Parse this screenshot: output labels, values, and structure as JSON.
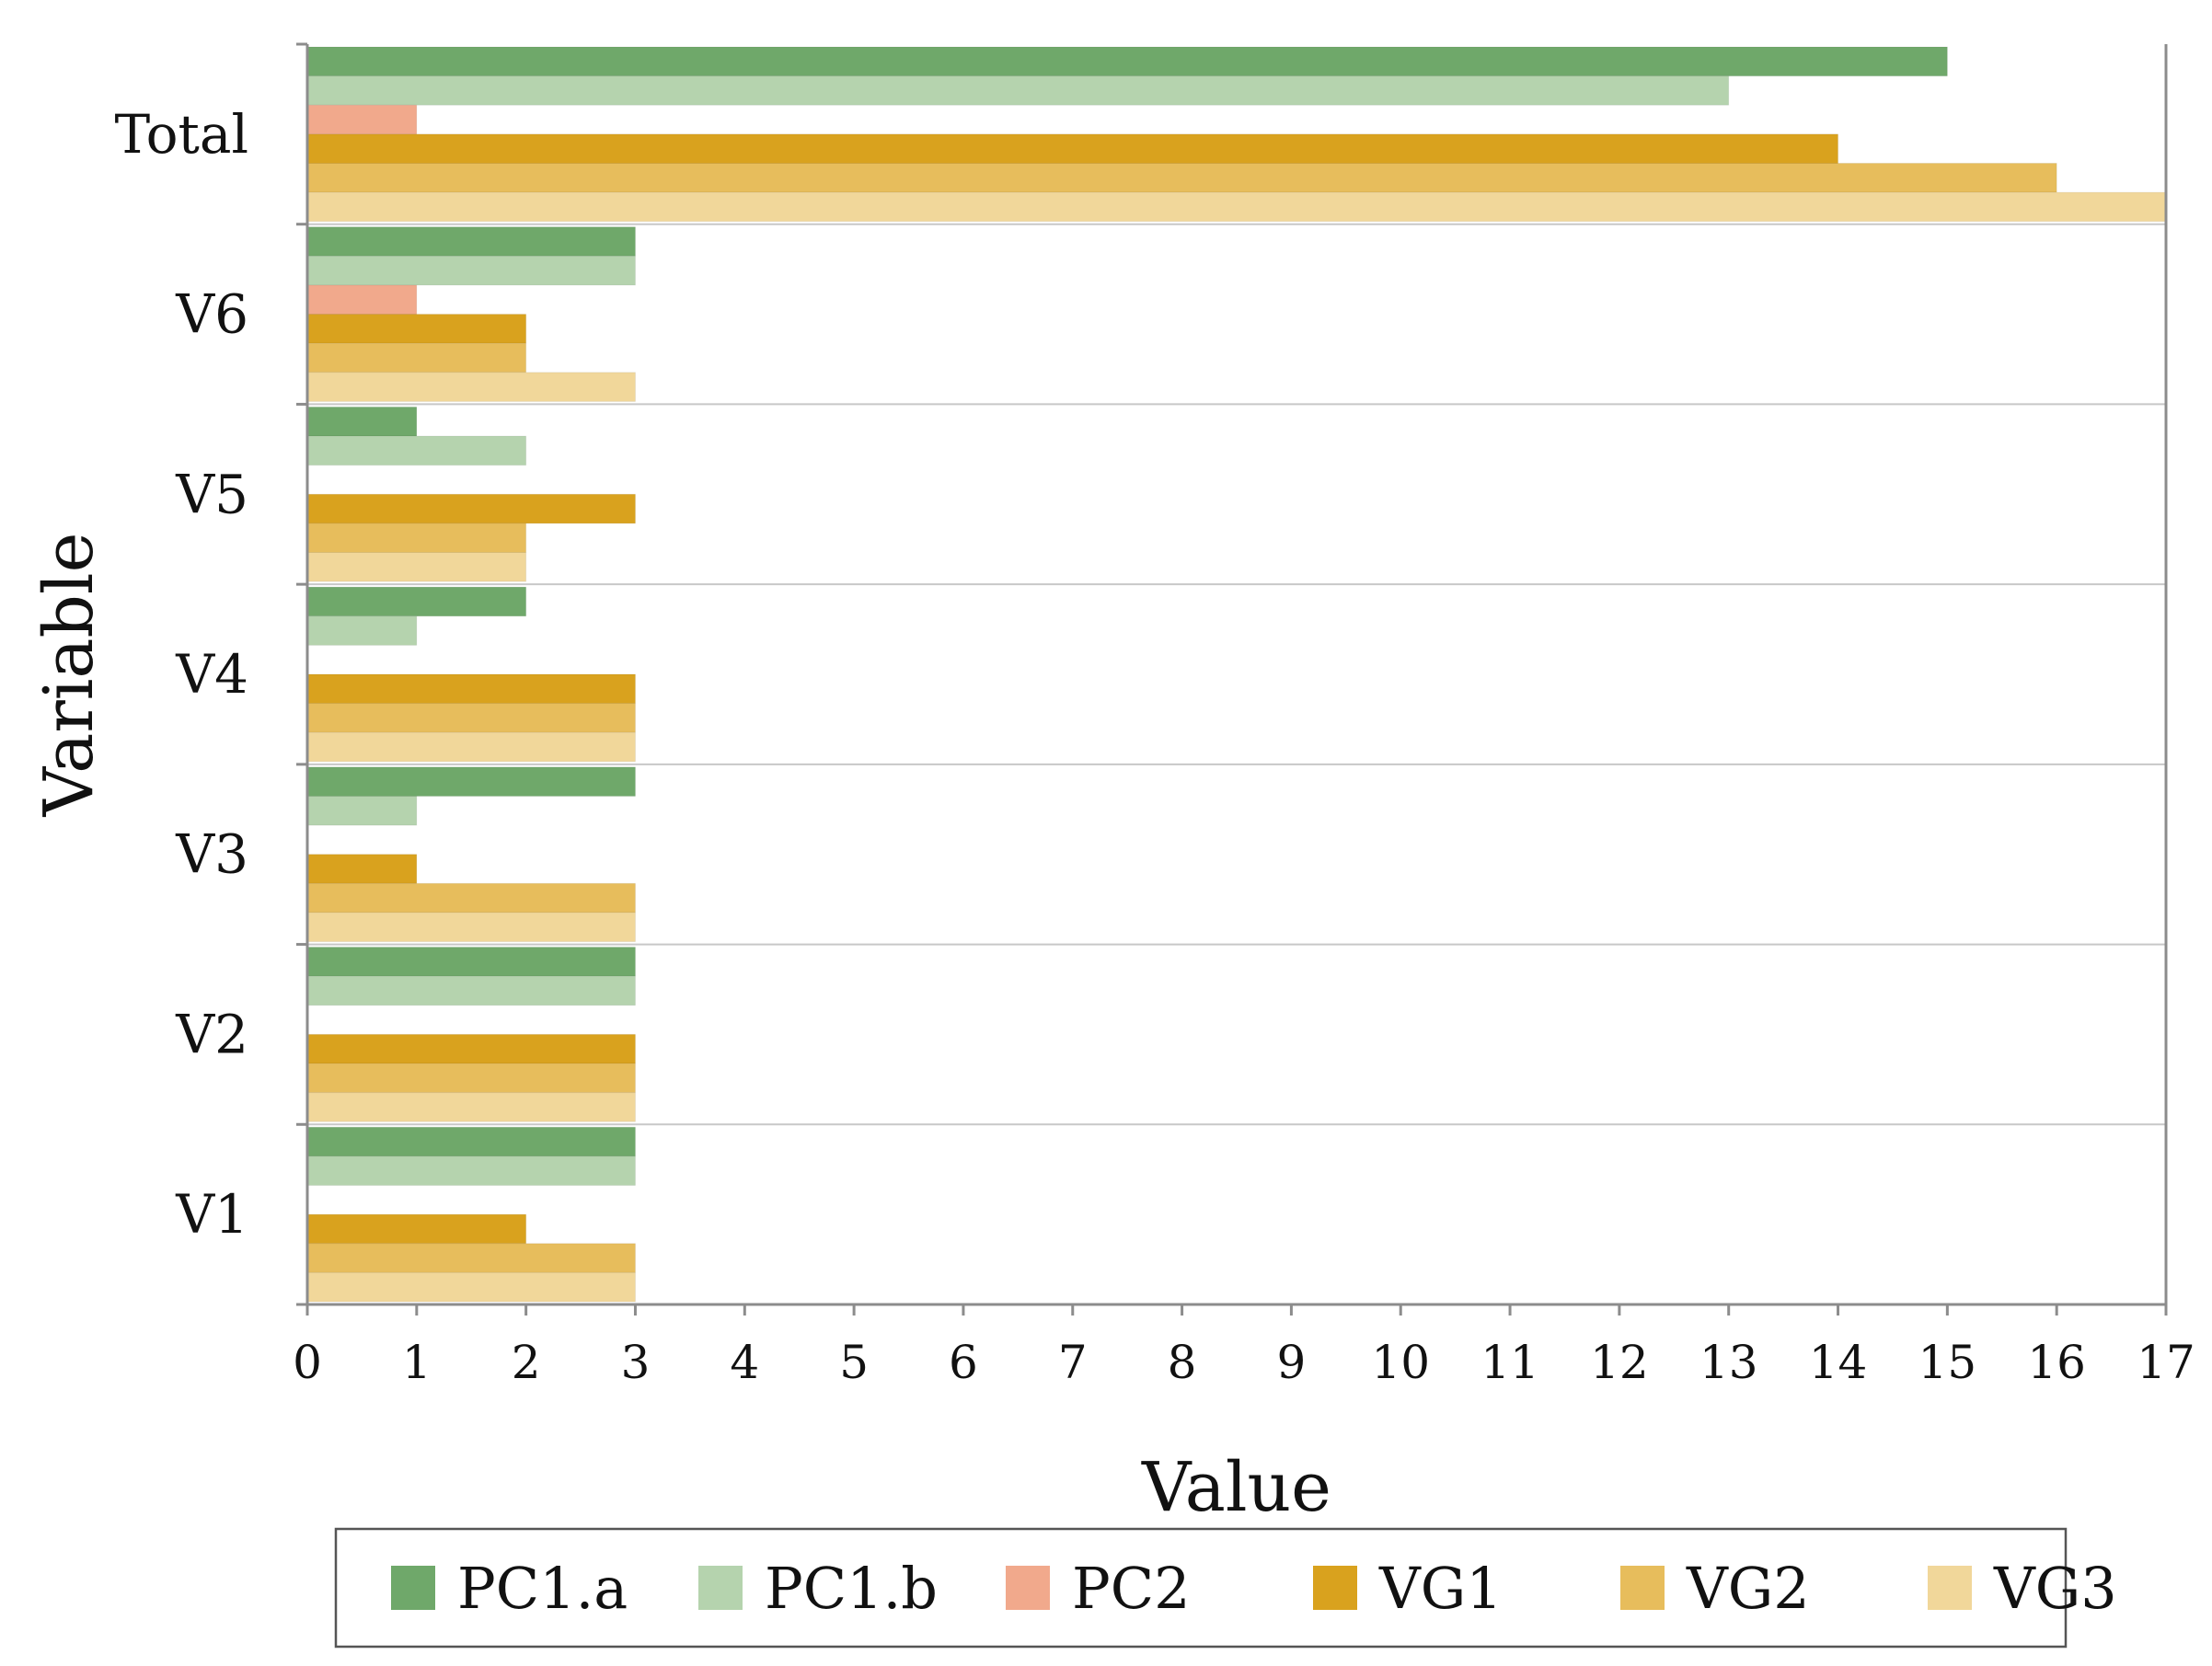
{
  "chart_data": {
    "type": "bar",
    "orientation": "horizontal",
    "categories": [
      "Total",
      "V6",
      "V5",
      "V4",
      "V3",
      "V2",
      "V1"
    ],
    "series": [
      {
        "name": "PC1.a",
        "color": "#6fa86a",
        "values": [
          15,
          3,
          1,
          2,
          3,
          3,
          3
        ]
      },
      {
        "name": "PC1.b",
        "color": "#b5d3ae",
        "values": [
          13,
          3,
          2,
          1,
          1,
          3,
          3
        ]
      },
      {
        "name": "PC2",
        "color": "#f1a98c",
        "values": [
          1,
          1,
          0,
          0,
          0,
          0,
          0
        ]
      },
      {
        "name": "VG1",
        "color": "#d9a21e",
        "values": [
          14,
          2,
          3,
          3,
          1,
          3,
          2
        ]
      },
      {
        "name": "VG2",
        "color": "#e7bd5c",
        "values": [
          16,
          2,
          2,
          3,
          3,
          3,
          3
        ]
      },
      {
        "name": "VG3",
        "color": "#f1d79a",
        "values": [
          17,
          3,
          2,
          3,
          3,
          3,
          3
        ]
      }
    ],
    "xlabel": "Value",
    "ylabel": "Variable",
    "xlim": [
      0,
      17
    ],
    "xticks": [
      0,
      1,
      2,
      3,
      4,
      5,
      6,
      7,
      8,
      9,
      10,
      11,
      12,
      13,
      14,
      15,
      16,
      17
    ],
    "grid": "horizontal separators between categories",
    "legend_position": "bottom"
  }
}
